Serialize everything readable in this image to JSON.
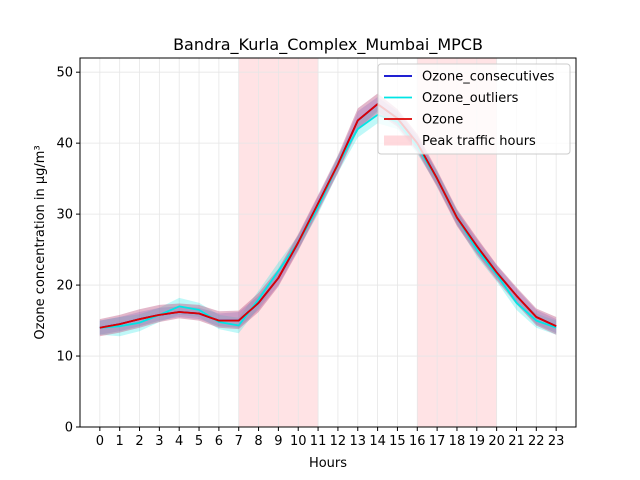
{
  "chart_data": {
    "type": "line",
    "title": "Bandra_Kurla_Complex_Mumbai_MPCB",
    "xlabel": "Hours",
    "ylabel": "Ozone concentration in µg/m³",
    "x": [
      0,
      1,
      2,
      3,
      4,
      5,
      6,
      7,
      8,
      9,
      10,
      11,
      12,
      13,
      14,
      15,
      16,
      17,
      18,
      19,
      20,
      21,
      22,
      23
    ],
    "xlim": [
      -1.0,
      24.0
    ],
    "ylim": [
      0,
      52
    ],
    "yticks": [
      0,
      10,
      20,
      30,
      40,
      50
    ],
    "grid": true,
    "legend_position": "top-right",
    "series": [
      {
        "name": "Ozone_consecutives",
        "color": "#0000cc",
        "values": [
          14.0,
          14.5,
          15.2,
          15.8,
          16.2,
          16.0,
          15.0,
          15.0,
          17.5,
          21.0,
          26.0,
          31.5,
          37.0,
          43.2,
          45.5,
          43.5,
          40.0,
          35.0,
          29.5,
          25.5,
          21.8,
          18.5,
          15.5,
          14.2
        ],
        "lower": [
          13.0,
          13.5,
          14.2,
          15.0,
          15.5,
          15.2,
          14.2,
          14.0,
          16.5,
          20.0,
          25.0,
          30.5,
          36.0,
          42.0,
          44.5,
          42.5,
          39.0,
          34.0,
          28.5,
          24.5,
          21.0,
          17.5,
          14.5,
          13.2
        ],
        "upper": [
          15.0,
          15.5,
          16.2,
          16.8,
          17.0,
          16.8,
          16.0,
          16.2,
          18.5,
          22.0,
          27.0,
          32.5,
          38.0,
          44.5,
          46.5,
          44.5,
          41.0,
          36.0,
          30.5,
          26.5,
          22.8,
          19.5,
          16.5,
          15.2
        ]
      },
      {
        "name": "Ozone_outliers",
        "color": "#00e5e5",
        "values": [
          14.0,
          14.2,
          14.7,
          15.8,
          17.0,
          16.5,
          14.8,
          14.3,
          18.0,
          22.0,
          26.0,
          31.0,
          37.0,
          42.0,
          44.0,
          43.0,
          39.5,
          35.0,
          29.5,
          25.0,
          21.5,
          17.5,
          15.0,
          14.0
        ],
        "lower": [
          13.0,
          12.8,
          13.5,
          14.8,
          15.8,
          15.5,
          13.8,
          13.2,
          16.8,
          20.8,
          25.0,
          30.0,
          35.8,
          40.8,
          42.8,
          42.0,
          38.5,
          34.0,
          28.5,
          24.0,
          20.5,
          16.5,
          14.0,
          13.0
        ],
        "upper": [
          15.0,
          15.5,
          15.9,
          16.8,
          18.2,
          17.5,
          15.8,
          15.4,
          19.2,
          23.2,
          27.0,
          32.0,
          38.2,
          43.2,
          45.2,
          44.0,
          40.5,
          36.0,
          30.5,
          26.0,
          22.5,
          18.5,
          16.0,
          15.0
        ]
      },
      {
        "name": "Ozone",
        "color": "#dd0000",
        "values": [
          14.0,
          14.5,
          15.2,
          15.8,
          16.2,
          16.0,
          15.0,
          15.0,
          17.5,
          21.0,
          26.0,
          31.5,
          37.0,
          43.2,
          45.5,
          43.5,
          40.0,
          35.0,
          29.5,
          25.5,
          21.8,
          18.5,
          15.5,
          14.2
        ],
        "lower": [
          12.8,
          13.3,
          14.0,
          14.8,
          15.3,
          15.0,
          14.0,
          13.8,
          16.2,
          19.8,
          24.8,
          30.3,
          35.8,
          41.8,
          44.2,
          42.3,
          38.8,
          33.8,
          28.3,
          24.3,
          20.7,
          17.3,
          14.3,
          13.0
        ],
        "upper": [
          15.2,
          15.8,
          16.6,
          17.2,
          17.4,
          17.2,
          16.3,
          16.4,
          18.9,
          22.3,
          27.2,
          32.7,
          38.3,
          44.9,
          47.0,
          44.8,
          41.3,
          36.2,
          30.7,
          26.7,
          22.9,
          19.7,
          16.7,
          15.5
        ]
      }
    ],
    "shaded_regions": [
      {
        "name": "Peak traffic hours",
        "x_start": 7,
        "x_end": 11,
        "color": "#ffc0c6"
      },
      {
        "name": "Peak traffic hours",
        "x_start": 16,
        "x_end": 20,
        "color": "#ffc0c6"
      }
    ],
    "legend": [
      "Ozone_consecutives",
      "Ozone_outliers",
      "Ozone",
      "Peak traffic hours"
    ]
  }
}
